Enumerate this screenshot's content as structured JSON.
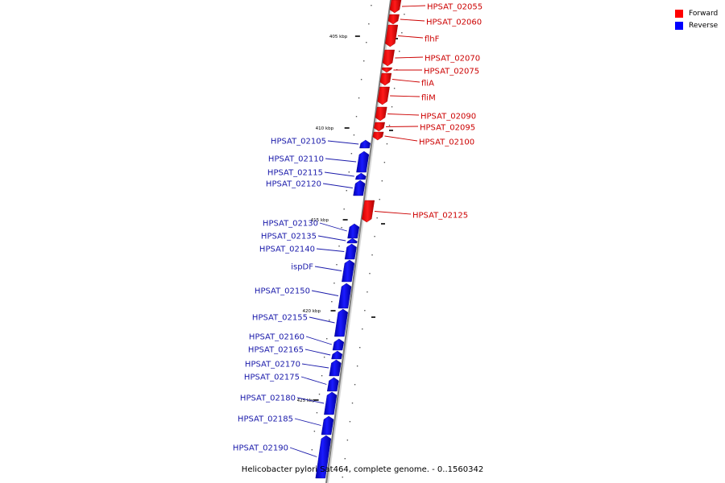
{
  "legend": [
    {
      "label": "Forward",
      "color": "#ff0000"
    },
    {
      "label": "Reverse",
      "color": "#0000ff"
    }
  ],
  "caption": "Helicobacter pylori Sat464, complete genome. - 0..1560342",
  "axis": {
    "major_ticks": [
      {
        "kbp": 405,
        "label": "405 kbp"
      },
      {
        "kbp": 410,
        "label": "410 kbp"
      },
      {
        "kbp": 415,
        "label": "415 kbp"
      },
      {
        "kbp": 420,
        "label": "420 kbp"
      },
      {
        "kbp": 425,
        "label": "425 kbp"
      }
    ]
  },
  "genes": {
    "forward": [
      {
        "name": "HPSAT_02055"
      },
      {
        "name": "HPSAT_02060"
      },
      {
        "name": "flhF"
      },
      {
        "name": "HPSAT_02070"
      },
      {
        "name": "HPSAT_02075"
      },
      {
        "name": "fliA"
      },
      {
        "name": "fliM"
      },
      {
        "name": "HPSAT_02090"
      },
      {
        "name": "HPSAT_02095"
      },
      {
        "name": "HPSAT_02100"
      },
      {
        "name": "HPSAT_02125"
      }
    ],
    "reverse": [
      {
        "name": "HPSAT_02105"
      },
      {
        "name": "HPSAT_02110"
      },
      {
        "name": "HPSAT_02115"
      },
      {
        "name": "HPSAT_02120"
      },
      {
        "name": "HPSAT_02130"
      },
      {
        "name": "HPSAT_02135"
      },
      {
        "name": "HPSAT_02140"
      },
      {
        "name": "ispDF"
      },
      {
        "name": "HPSAT_02150"
      },
      {
        "name": "HPSAT_02155"
      },
      {
        "name": "HPSAT_02160"
      },
      {
        "name": "HPSAT_02165"
      },
      {
        "name": "HPSAT_02170"
      },
      {
        "name": "HPSAT_02175"
      },
      {
        "name": "HPSAT_02180"
      },
      {
        "name": "HPSAT_02185"
      },
      {
        "name": "HPSAT_02190"
      }
    ]
  }
}
